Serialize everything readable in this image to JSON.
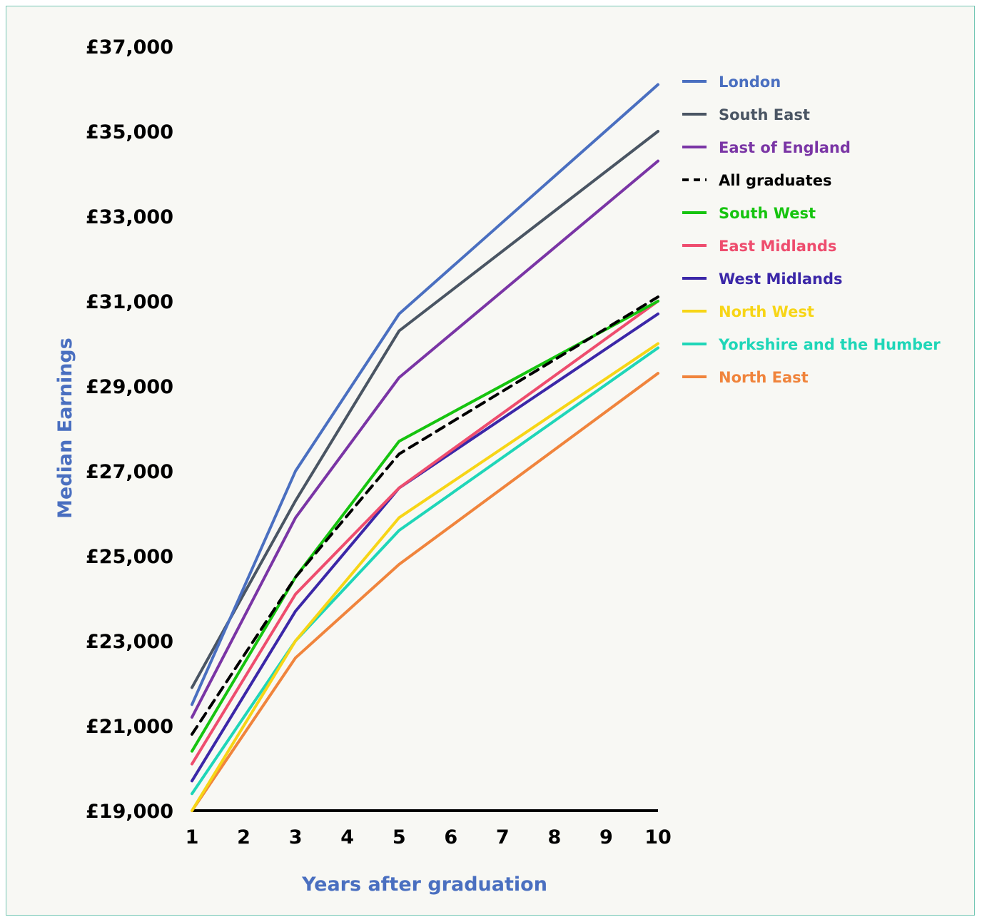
{
  "chart_data": {
    "type": "line",
    "title": "",
    "xlabel": "Years after graduation",
    "ylabel": "Median Earnings",
    "x": [
      1,
      3,
      5,
      10
    ],
    "x_ticks": [
      "1",
      "2",
      "3",
      "4",
      "5",
      "6",
      "7",
      "8",
      "9",
      "10"
    ],
    "xlim": [
      1,
      10
    ],
    "ylim": [
      19000,
      37000
    ],
    "y_ticks": [
      "£19,000",
      "£21,000",
      "£23,000",
      "£25,000",
      "£27,000",
      "£29,000",
      "£31,000",
      "£33,000",
      "£35,000",
      "£37,000"
    ],
    "y_tick_values": [
      19000,
      21000,
      23000,
      25000,
      27000,
      29000,
      31000,
      33000,
      35000,
      37000
    ],
    "grid": false,
    "legend_position": "right",
    "series": [
      {
        "name": "London",
        "color": "#4a6fc0",
        "dashed": false,
        "values": [
          21500,
          27000,
          30700,
          36100
        ]
      },
      {
        "name": "South East",
        "color": "#4a5563",
        "dashed": false,
        "values": [
          21900,
          26300,
          30300,
          35000
        ]
      },
      {
        "name": "East of England",
        "color": "#7a35a5",
        "dashed": false,
        "values": [
          21200,
          25900,
          29200,
          34300
        ]
      },
      {
        "name": "All graduates",
        "color": "#000000",
        "dashed": true,
        "values": [
          20800,
          24500,
          27400,
          31100
        ]
      },
      {
        "name": "South West",
        "color": "#16c40f",
        "dashed": false,
        "values": [
          20400,
          24500,
          27700,
          31000
        ]
      },
      {
        "name": "East Midlands",
        "color": "#ee4d6e",
        "dashed": false,
        "values": [
          20100,
          24100,
          26600,
          31000
        ]
      },
      {
        "name": "West Midlands",
        "color": "#3b27a8",
        "dashed": false,
        "values": [
          19700,
          23700,
          26600,
          30700
        ]
      },
      {
        "name": "North West",
        "color": "#f7d516",
        "dashed": false,
        "values": [
          19000,
          23000,
          25900,
          30000
        ]
      },
      {
        "name": "Yorkshire and the Humber",
        "color": "#1fd6b8",
        "dashed": false,
        "values": [
          19400,
          23000,
          25600,
          29900
        ]
      },
      {
        "name": "North East",
        "color": "#f0843c",
        "dashed": false,
        "values": [
          19000,
          22600,
          24800,
          29300
        ]
      }
    ]
  }
}
